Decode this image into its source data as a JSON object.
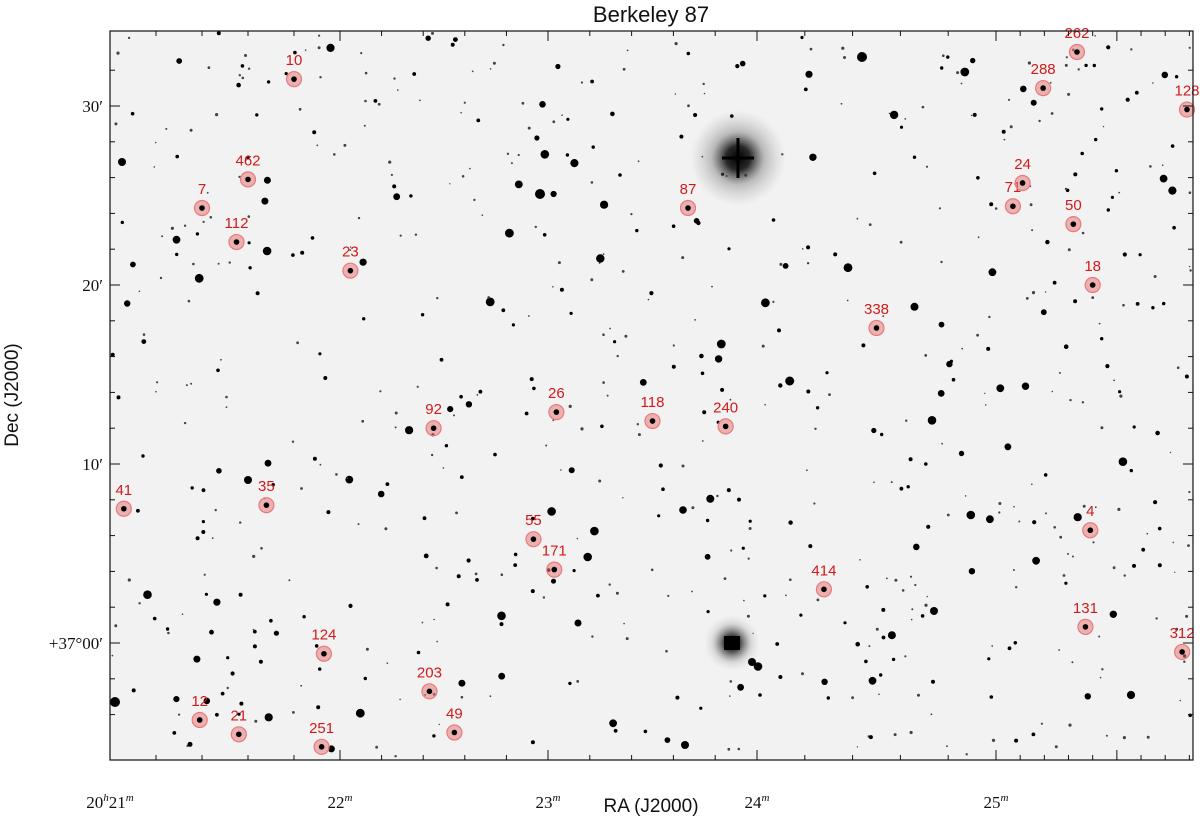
{
  "chart_data": {
    "type": "scatter",
    "title": "Berkeley 87",
    "xlabel": "RA (J2000)",
    "ylabel": "Dec (J2000)",
    "xlim_ra_min": [
      21.0,
      26.63
    ],
    "ylim_dec_arcmin": [
      -4.0,
      32.4
    ],
    "x_ticks": [
      {
        "value": 21.0,
        "label": "20h21m"
      },
      {
        "value": 22.0,
        "label": "22m"
      },
      {
        "value": 23.0,
        "label": "23m"
      },
      {
        "value": 24.0,
        "label": "24m"
      },
      {
        "value": 25.0,
        "label": "25m"
      }
    ],
    "y_ticks": [
      {
        "value": 0,
        "label": "+37°00′"
      },
      {
        "value": 10,
        "label": "10′"
      },
      {
        "value": 20,
        "label": "20′"
      },
      {
        "value": 30,
        "label": "30′"
      }
    ],
    "marker_color": "#e87a7a",
    "label_color": "#d11a1a",
    "marked_stars": [
      {
        "id": "10",
        "ra": 21.8,
        "dec": 31.5
      },
      {
        "id": "462",
        "ra": 21.6,
        "dec": 25.9
      },
      {
        "id": "7",
        "ra": 21.4,
        "dec": 24.3
      },
      {
        "id": "112",
        "ra": 21.55,
        "dec": 22.4
      },
      {
        "id": "23",
        "ra": 22.05,
        "dec": 20.8
      },
      {
        "id": "87",
        "ra": 23.67,
        "dec": 24.3
      },
      {
        "id": "71",
        "ra": 25.14,
        "dec": 24.4
      },
      {
        "id": "24",
        "ra": 25.22,
        "dec": 25.7
      },
      {
        "id": "288",
        "ra": 25.39,
        "dec": 31.0
      },
      {
        "id": "262",
        "ra": 25.67,
        "dec": 33.2
      },
      {
        "id": "128",
        "ra": 26.61,
        "dec": 29.8
      },
      {
        "id": "50",
        "ra": 25.64,
        "dec": 23.4
      },
      {
        "id": "18",
        "ra": 25.8,
        "dec": 20.0
      },
      {
        "id": "338",
        "ra": 24.5,
        "dec": 17.6
      },
      {
        "id": "26",
        "ra": 23.04,
        "dec": 12.9
      },
      {
        "id": "118",
        "ra": 23.5,
        "dec": 12.4
      },
      {
        "id": "240",
        "ra": 23.85,
        "dec": 12.1
      },
      {
        "id": "92",
        "ra": 22.45,
        "dec": 12.0
      },
      {
        "id": "41",
        "ra": 21.06,
        "dec": 7.5
      },
      {
        "id": "35",
        "ra": 21.68,
        "dec": 7.7
      },
      {
        "id": "55",
        "ra": 22.93,
        "dec": 5.8
      },
      {
        "id": "171",
        "ra": 23.03,
        "dec": 4.1
      },
      {
        "id": "414",
        "ra": 24.28,
        "dec": 3.0
      },
      {
        "id": "4",
        "ra": 25.78,
        "dec": 6.3
      },
      {
        "id": "131",
        "ra": 25.74,
        "dec": 0.9
      },
      {
        "id": "312",
        "ra": 26.54,
        "dec": -0.5
      },
      {
        "id": "124",
        "ra": 21.93,
        "dec": -0.6
      },
      {
        "id": "203",
        "ra": 22.43,
        "dec": -2.7
      },
      {
        "id": "12",
        "ra": 21.39,
        "dec": -4.3
      },
      {
        "id": "21",
        "ra": 21.56,
        "dec": -5.1
      },
      {
        "id": "49",
        "ra": 22.55,
        "dec": -5.0
      },
      {
        "id": "251",
        "ra": 21.92,
        "dec": -5.8
      }
    ]
  }
}
